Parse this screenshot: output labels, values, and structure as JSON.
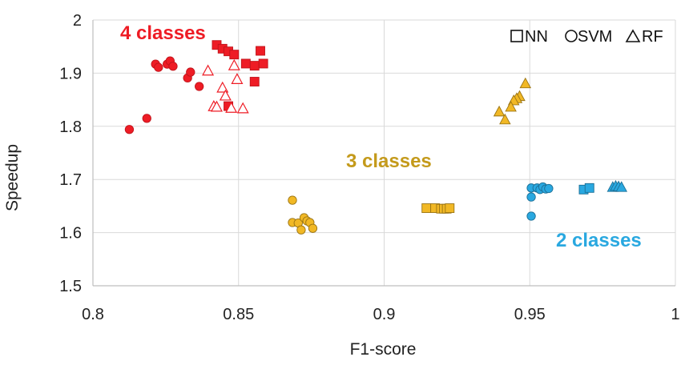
{
  "chart_data": {
    "type": "scatter",
    "title": "",
    "xlabel": "F1-score",
    "ylabel": "Speedup",
    "xlim": [
      0.8,
      1.0
    ],
    "ylim": [
      1.5,
      2.0
    ],
    "xticks": [
      "0.8",
      "0.85",
      "0.9",
      "0.95",
      "1"
    ],
    "yticks": [
      "1.5",
      "1.6",
      "1.7",
      "1.8",
      "1.9",
      "2"
    ],
    "grid": true,
    "legend": {
      "placement": "top-right",
      "entries": [
        {
          "label": "NN",
          "shape": "square"
        },
        {
          "label": "SVM",
          "shape": "circle"
        },
        {
          "label": "RF",
          "shape": "triangle"
        }
      ]
    },
    "colors": {
      "four_fill": "#ee1c25",
      "four_stroke": "#c0141b",
      "three_fill": "#f1b825",
      "three_stroke": "#9a7414",
      "two_fill": "#29a8e0",
      "two_stroke": "#1c6f96"
    },
    "groups": [
      {
        "label": "4 classes",
        "label_color": "#ee1c25",
        "fill": "#ee1c25",
        "stroke": "#c0141b",
        "series": [
          {
            "name": "NN",
            "marker": "square",
            "hollow": false,
            "points": [
              [
                0.8425,
                1.953
              ],
              [
                0.8445,
                1.946
              ],
              [
                0.8465,
                1.941
              ],
              [
                0.8485,
                1.935
              ],
              [
                0.8525,
                1.918
              ],
              [
                0.8555,
                1.914
              ],
              [
                0.8575,
                1.942
              ],
              [
                0.8585,
                1.918
              ],
              [
                0.8555,
                1.884
              ],
              [
                0.8465,
                1.838
              ]
            ]
          },
          {
            "name": "SVM",
            "marker": "circle",
            "hollow": false,
            "points": [
              [
                0.8215,
                1.917
              ],
              [
                0.8225,
                1.911
              ],
              [
                0.8255,
                1.917
              ],
              [
                0.8265,
                1.923
              ],
              [
                0.8275,
                1.913
              ],
              [
                0.8325,
                1.891
              ],
              [
                0.8335,
                1.902
              ],
              [
                0.8365,
                1.875
              ],
              [
                0.8185,
                1.815
              ],
              [
                0.8125,
                1.794
              ]
            ]
          },
          {
            "name": "RF",
            "marker": "triangle",
            "hollow": true,
            "points": [
              [
                0.8395,
                1.904
              ],
              [
                0.8485,
                1.914
              ],
              [
                0.8495,
                1.888
              ],
              [
                0.8445,
                1.872
              ],
              [
                0.8455,
                1.857
              ],
              [
                0.8415,
                1.837
              ],
              [
                0.8425,
                1.836
              ],
              [
                0.8475,
                1.834
              ],
              [
                0.8515,
                1.833
              ]
            ]
          }
        ]
      },
      {
        "label": "3 classes",
        "label_color": "#c49a1b",
        "fill": "#f1b825",
        "stroke": "#9a7414",
        "series": [
          {
            "name": "NN",
            "marker": "square",
            "hollow": false,
            "points": [
              [
                0.9145,
                1.646
              ],
              [
                0.9175,
                1.646
              ],
              [
                0.9195,
                1.645
              ],
              [
                0.9205,
                1.645
              ],
              [
                0.9215,
                1.645
              ],
              [
                0.9225,
                1.646
              ]
            ]
          },
          {
            "name": "SVM",
            "marker": "circle",
            "hollow": false,
            "points": [
              [
                0.8685,
                1.661
              ],
              [
                0.8685,
                1.619
              ],
              [
                0.8705,
                1.618
              ],
              [
                0.8725,
                1.628
              ],
              [
                0.8735,
                1.622
              ],
              [
                0.8745,
                1.619
              ],
              [
                0.8715,
                1.605
              ],
              [
                0.8755,
                1.608
              ]
            ]
          },
          {
            "name": "RF",
            "marker": "triangle",
            "hollow": false,
            "points": [
              [
                0.9485,
                1.88
              ],
              [
                0.9465,
                1.856
              ],
              [
                0.9455,
                1.852
              ],
              [
                0.9445,
                1.848
              ],
              [
                0.9435,
                1.836
              ],
              [
                0.9395,
                1.827
              ],
              [
                0.9415,
                1.812
              ]
            ]
          }
        ]
      },
      {
        "label": "2 classes",
        "label_color": "#29a8e0",
        "fill": "#29a8e0",
        "stroke": "#1c6f96",
        "series": [
          {
            "name": "NN",
            "marker": "square",
            "hollow": false,
            "points": [
              [
                0.9685,
                1.681
              ],
              [
                0.9705,
                1.684
              ]
            ]
          },
          {
            "name": "SVM",
            "marker": "circle",
            "hollow": false,
            "points": [
              [
                0.9505,
                1.684
              ],
              [
                0.9525,
                1.684
              ],
              [
                0.9535,
                1.681
              ],
              [
                0.9545,
                1.686
              ],
              [
                0.9555,
                1.682
              ],
              [
                0.9565,
                1.683
              ],
              [
                0.9505,
                1.667
              ],
              [
                0.9505,
                1.631
              ]
            ]
          },
          {
            "name": "RF",
            "marker": "triangle",
            "hollow": false,
            "points": [
              [
                0.9785,
                1.685
              ],
              [
                0.9795,
                1.687
              ],
              [
                0.9805,
                1.686
              ],
              [
                0.9815,
                1.685
              ]
            ]
          }
        ]
      }
    ]
  }
}
